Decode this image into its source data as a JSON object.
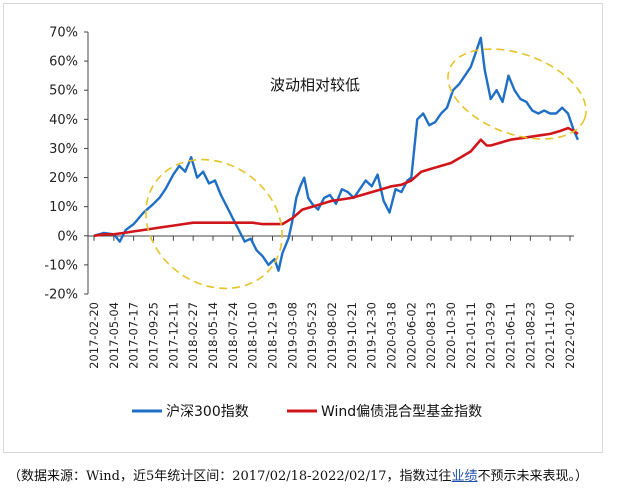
{
  "chart_data": {
    "type": "line",
    "annotation": "波动相对较低",
    "y_ticks": [
      "70%",
      "60%",
      "50%",
      "40%",
      "30%",
      "20%",
      "10%",
      "0%",
      "-10%",
      "-20%"
    ],
    "ylim": [
      -20,
      70
    ],
    "x_ticks": [
      "2017-02-20",
      "2017-05-04",
      "2017-07-17",
      "2017-09-25",
      "2017-12-11",
      "2018-02-27",
      "2018-05-14",
      "2018-07-24",
      "2018-10-10",
      "2018-12-19",
      "2019-03-08",
      "2019-05-23",
      "2019-08-02",
      "2019-10-21",
      "2019-12-30",
      "2020-03-18",
      "2020-06-02",
      "2020-08-13",
      "2020-10-30",
      "2021-01-11",
      "2021-03-29",
      "2021-06-11",
      "2021-08-23",
      "2021-11-10",
      "2022-01-20"
    ],
    "series": [
      {
        "name": "沪深300指数",
        "color": "#1f6fc6",
        "points": [
          [
            0,
            0
          ],
          [
            0.5,
            1
          ],
          [
            1,
            0.5
          ],
          [
            1.3,
            -2
          ],
          [
            1.6,
            2
          ],
          [
            2,
            4
          ],
          [
            2.5,
            8
          ],
          [
            3,
            11
          ],
          [
            3.3,
            13
          ],
          [
            3.6,
            16
          ],
          [
            4,
            21
          ],
          [
            4.3,
            24
          ],
          [
            4.6,
            22
          ],
          [
            4.9,
            27
          ],
          [
            5.2,
            20
          ],
          [
            5.5,
            22
          ],
          [
            5.8,
            18
          ],
          [
            6.1,
            19
          ],
          [
            6.4,
            14
          ],
          [
            6.7,
            10
          ],
          [
            7,
            6
          ],
          [
            7.3,
            2
          ],
          [
            7.6,
            -2
          ],
          [
            7.9,
            -1
          ],
          [
            8.2,
            -5
          ],
          [
            8.5,
            -7
          ],
          [
            8.8,
            -10
          ],
          [
            9.1,
            -8
          ],
          [
            9.3,
            -12
          ],
          [
            9.5,
            -6
          ],
          [
            9.8,
            -1
          ],
          [
            10,
            5
          ],
          [
            10.2,
            13
          ],
          [
            10.4,
            17
          ],
          [
            10.6,
            20
          ],
          [
            10.8,
            13
          ],
          [
            11,
            11
          ],
          [
            11.3,
            9
          ],
          [
            11.6,
            13
          ],
          [
            11.9,
            14
          ],
          [
            12.2,
            11
          ],
          [
            12.5,
            16
          ],
          [
            12.8,
            15
          ],
          [
            13.1,
            13
          ],
          [
            13.4,
            16
          ],
          [
            13.7,
            19
          ],
          [
            14,
            17
          ],
          [
            14.3,
            21
          ],
          [
            14.6,
            12
          ],
          [
            14.9,
            8
          ],
          [
            15.2,
            16
          ],
          [
            15.5,
            15
          ],
          [
            15.8,
            19
          ],
          [
            16,
            20
          ],
          [
            16.3,
            40
          ],
          [
            16.6,
            42
          ],
          [
            16.9,
            38
          ],
          [
            17.2,
            39
          ],
          [
            17.5,
            42
          ],
          [
            17.8,
            44
          ],
          [
            18.1,
            50
          ],
          [
            18.4,
            52
          ],
          [
            18.7,
            55
          ],
          [
            19,
            58
          ],
          [
            19.2,
            62
          ],
          [
            19.5,
            68
          ],
          [
            19.7,
            57
          ],
          [
            20,
            47
          ],
          [
            20.3,
            50
          ],
          [
            20.6,
            46
          ],
          [
            20.9,
            55
          ],
          [
            21.2,
            50
          ],
          [
            21.5,
            47
          ],
          [
            21.8,
            46
          ],
          [
            22.1,
            43
          ],
          [
            22.4,
            42
          ],
          [
            22.7,
            43
          ],
          [
            23,
            42
          ],
          [
            23.3,
            42
          ],
          [
            23.6,
            44
          ],
          [
            23.9,
            42
          ],
          [
            24.2,
            36
          ],
          [
            24.4,
            33
          ]
        ]
      },
      {
        "name": "Wind偏债混合型基金指数",
        "color": "#d0161b",
        "points": [
          [
            0,
            0
          ],
          [
            0.5,
            0.5
          ],
          [
            1,
            0.5
          ],
          [
            1.5,
            1
          ],
          [
            2,
            1.5
          ],
          [
            2.5,
            2
          ],
          [
            3,
            2.5
          ],
          [
            3.5,
            3
          ],
          [
            4,
            3.5
          ],
          [
            4.5,
            4
          ],
          [
            5,
            4.5
          ],
          [
            5.5,
            4.5
          ],
          [
            6,
            4.5
          ],
          [
            6.5,
            4.5
          ],
          [
            7,
            4.5
          ],
          [
            7.5,
            4.5
          ],
          [
            8,
            4.5
          ],
          [
            8.5,
            4
          ],
          [
            9,
            4
          ],
          [
            9.5,
            4
          ],
          [
            10,
            6
          ],
          [
            10.5,
            9
          ],
          [
            11,
            10
          ],
          [
            11.5,
            11
          ],
          [
            12,
            12
          ],
          [
            12.5,
            12.5
          ],
          [
            13,
            13
          ],
          [
            13.5,
            14
          ],
          [
            14,
            15
          ],
          [
            14.5,
            16
          ],
          [
            15,
            17
          ],
          [
            15.5,
            17.5
          ],
          [
            16,
            19
          ],
          [
            16.5,
            22
          ],
          [
            17,
            23
          ],
          [
            17.5,
            24
          ],
          [
            18,
            25
          ],
          [
            18.5,
            27
          ],
          [
            19,
            29
          ],
          [
            19.5,
            33
          ],
          [
            19.8,
            31
          ],
          [
            20,
            31
          ],
          [
            20.5,
            32
          ],
          [
            21,
            33
          ],
          [
            21.5,
            33.5
          ],
          [
            22,
            34
          ],
          [
            22.5,
            34.5
          ],
          [
            23,
            35
          ],
          [
            23.5,
            36
          ],
          [
            23.9,
            37
          ],
          [
            24.2,
            36
          ],
          [
            24.4,
            35
          ]
        ]
      }
    ]
  },
  "legend": {
    "series1_label": "沪深300指数",
    "series2_label": "Wind偏债混合型基金指数"
  },
  "source": {
    "prefix": "（数据来源：Wind，近5年统计区间：2017/02/18-2022/02/17，指数过往",
    "link": "业绩",
    "suffix": "不预示未来表现。）"
  }
}
